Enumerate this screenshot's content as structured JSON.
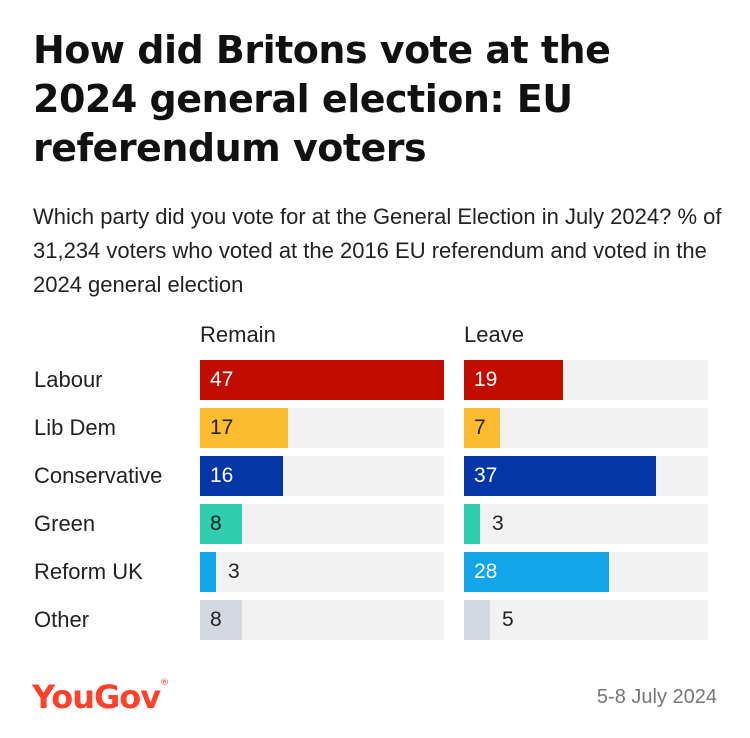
{
  "title": "How did Britons vote at the 2024 general election: EU referendum voters",
  "subtitle": "Which party did you vote for at the General Election in July 2024? % of 31,234 voters who voted at the 2016 EU referendum and voted in the 2024 general election",
  "logo": "YouGov",
  "date": "5-8 July 2024",
  "colors": {
    "Labour": "#c00d00",
    "Lib Dem": "#fdbb30",
    "Conservative": "#0436a6",
    "Green": "#30ceae",
    "Reform UK": "#12a5ea",
    "Other": "#d3d7df",
    "track": "#f2f2f2"
  },
  "chart_data": {
    "type": "bar",
    "orientation": "horizontal",
    "categories": [
      "Labour",
      "Lib Dem",
      "Conservative",
      "Green",
      "Reform UK",
      "Other"
    ],
    "series": [
      {
        "name": "Remain",
        "values": [
          47,
          17,
          16,
          8,
          3,
          8
        ]
      },
      {
        "name": "Leave",
        "values": [
          19,
          7,
          37,
          3,
          28,
          5
        ]
      }
    ],
    "xlim": [
      0,
      47
    ]
  }
}
